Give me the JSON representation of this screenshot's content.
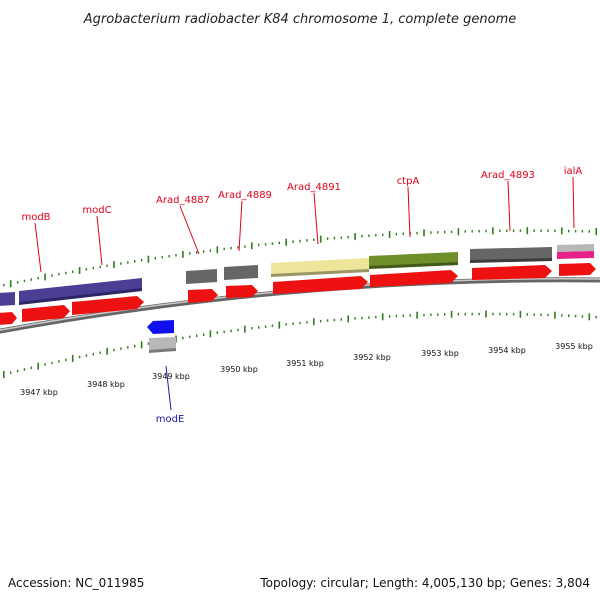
{
  "header": {
    "title": "Agrobacterium radiobacter K84 chromosome 1, complete genome"
  },
  "footer": {
    "accession": "Accession: NC_011985",
    "summary": "Topology: circular; Length: 4,005,130 bp; Genes: 3,804"
  },
  "colors": {
    "cds": "#ee1111",
    "backbone": "#8a8a8a",
    "tick": "#2e7d1e",
    "label": "#e0001a",
    "label_reverse": "#1a1aa8"
  },
  "position_labels": [
    "3947 kbp",
    "3948 kbp",
    "3949 kbp",
    "3950 kbp",
    "3951 kbp",
    "3952 kbp",
    "3953 kbp",
    "3954 kbp",
    "3955 kbp"
  ],
  "genes": [
    {
      "name": "modB",
      "strand": "forward",
      "color": "#4a3f94"
    },
    {
      "name": "modC",
      "strand": "forward",
      "color": "#4a3f94"
    },
    {
      "name": "Arad_4887",
      "strand": "forward",
      "color": "#666666"
    },
    {
      "name": "Arad_4889",
      "strand": "forward",
      "color": "#666666"
    },
    {
      "name": "Arad_4891",
      "strand": "forward",
      "color": "#ece59a"
    },
    {
      "name": "ctpA",
      "strand": "forward",
      "color": "#6e8f2a"
    },
    {
      "name": "Arad_4893",
      "strand": "forward",
      "color": "#666666"
    },
    {
      "name": "ialA",
      "strand": "forward",
      "color": "#e8208a"
    },
    {
      "name": "modE",
      "strand": "reverse",
      "color": "#1010ee"
    }
  ]
}
